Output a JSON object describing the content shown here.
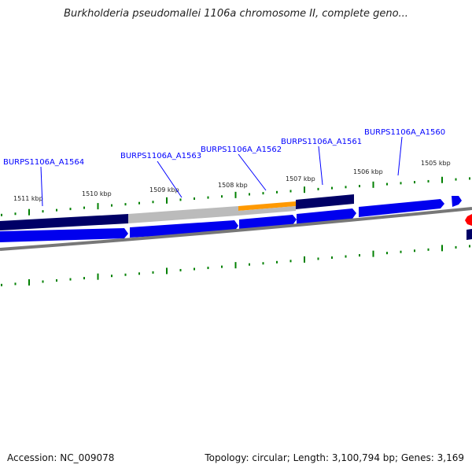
{
  "title": "Burkholderia pseudomallei 1106a chromosome II, complete geno...",
  "accession": "Accession: NC_009078",
  "topology": "Topology: circular; Length: 3,100,794 bp; Genes: 3,169",
  "genes": [
    "BURPS1106A_A1564",
    "BURPS1106A_A1563",
    "BURPS1106A_A1562",
    "BURPS1106A_A1561",
    "BURPS1106A_A1560"
  ],
  "ticks": [
    "1511 kbp",
    "1510 kbp",
    "1509 kbp",
    "1508 kbp",
    "1507 kbp",
    "1506 kbp",
    "1505 kbp"
  ],
  "colors": {
    "navy": "#000066",
    "gray": "#bbbbbb",
    "orange": "#ff9900",
    "blue": "#0000ee",
    "red": "#ff0000",
    "tick": "#008000"
  }
}
